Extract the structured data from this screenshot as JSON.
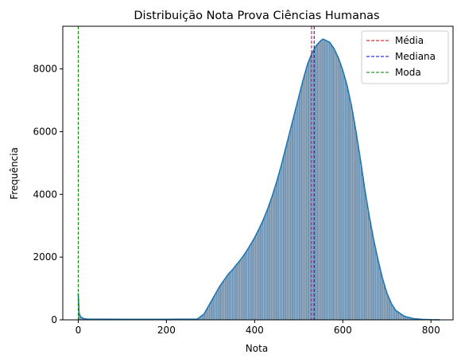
{
  "chart_data": {
    "type": "histogram",
    "title": "Distribuição Nota Prova Ciências Humanas",
    "xlabel": "Nota",
    "ylabel": "Frequência",
    "xlim": [
      -35,
      850
    ],
    "ylim": [
      0,
      9360
    ],
    "x_ticks": [
      0,
      200,
      400,
      600,
      800
    ],
    "y_ticks": [
      0,
      2000,
      4000,
      6000,
      8000
    ],
    "grid": false,
    "legend_position": "top-right",
    "bin_width": 4,
    "bar_color": "#6a8faf",
    "bar_edge_color": "#d9dee6",
    "kde_color": "#1f77b4",
    "density_curve": [
      [
        0,
        850
      ],
      [
        2,
        200
      ],
      [
        6,
        90
      ],
      [
        12,
        40
      ],
      [
        20,
        25
      ],
      [
        40,
        20
      ],
      [
        100,
        18
      ],
      [
        200,
        18
      ],
      [
        270,
        25
      ],
      [
        285,
        180
      ],
      [
        300,
        550
      ],
      [
        310,
        800
      ],
      [
        320,
        1050
      ],
      [
        330,
        1250
      ],
      [
        340,
        1450
      ],
      [
        350,
        1600
      ],
      [
        360,
        1780
      ],
      [
        370,
        1950
      ],
      [
        380,
        2150
      ],
      [
        390,
        2380
      ],
      [
        400,
        2620
      ],
      [
        410,
        2900
      ],
      [
        420,
        3200
      ],
      [
        430,
        3550
      ],
      [
        440,
        3950
      ],
      [
        450,
        4400
      ],
      [
        460,
        4900
      ],
      [
        470,
        5450
      ],
      [
        480,
        6000
      ],
      [
        490,
        6550
      ],
      [
        500,
        7100
      ],
      [
        510,
        7650
      ],
      [
        520,
        8150
      ],
      [
        530,
        8500
      ],
      [
        540,
        8750
      ],
      [
        550,
        8900
      ],
      [
        555,
        8950
      ],
      [
        560,
        8920
      ],
      [
        570,
        8850
      ],
      [
        580,
        8650
      ],
      [
        590,
        8350
      ],
      [
        600,
        7950
      ],
      [
        610,
        7450
      ],
      [
        620,
        6800
      ],
      [
        630,
        6000
      ],
      [
        640,
        5100
      ],
      [
        650,
        4150
      ],
      [
        660,
        3300
      ],
      [
        670,
        2550
      ],
      [
        680,
        1900
      ],
      [
        690,
        1320
      ],
      [
        700,
        850
      ],
      [
        710,
        520
      ],
      [
        720,
        300
      ],
      [
        740,
        110
      ],
      [
        760,
        40
      ],
      [
        780,
        15
      ],
      [
        800,
        5
      ],
      [
        820,
        2
      ]
    ],
    "series": [
      {
        "name": "Média",
        "x": 529,
        "color": "#e00000",
        "style": "dashed"
      },
      {
        "name": "Mediana",
        "x": 535,
        "color": "#0000ee",
        "style": "dashed"
      },
      {
        "name": "Moda",
        "x": 0,
        "color": "#008000",
        "style": "dashed"
      }
    ]
  }
}
